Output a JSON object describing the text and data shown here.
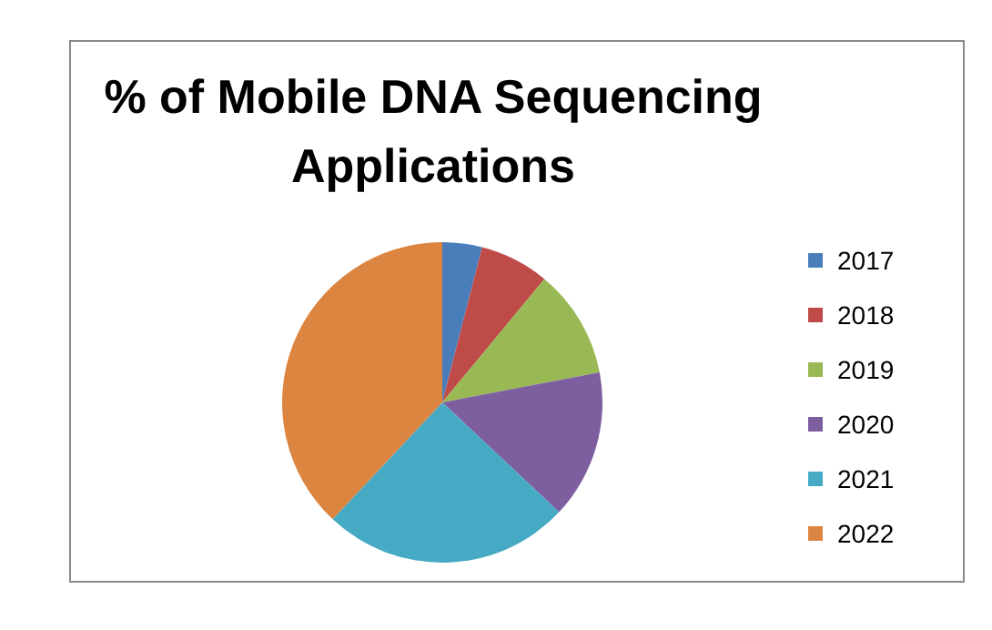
{
  "chart_data": {
    "type": "pie",
    "title": "% of Mobile DNA Sequencing Applications",
    "categories": [
      "2017",
      "2018",
      "2019",
      "2020",
      "2021",
      "2022"
    ],
    "values": [
      4,
      7,
      11,
      15,
      25,
      38
    ],
    "colors": [
      "#4a7ebb",
      "#be4b48",
      "#98b954",
      "#7d5fa0",
      "#46aac5",
      "#dc8540"
    ],
    "legend": "right"
  }
}
